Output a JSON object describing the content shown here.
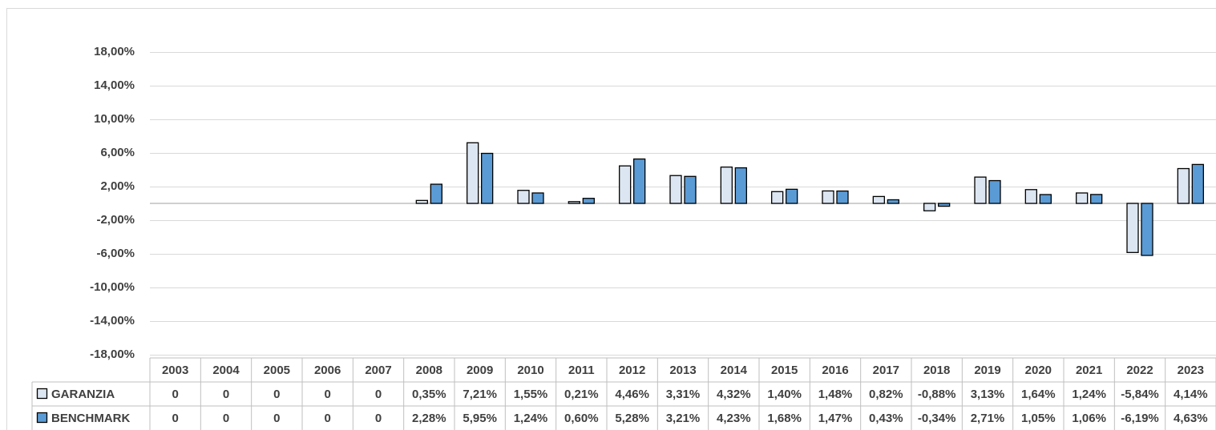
{
  "chart_data": {
    "type": "bar",
    "categories": [
      "2003",
      "2004",
      "2005",
      "2006",
      "2007",
      "2008",
      "2009",
      "2010",
      "2011",
      "2012",
      "2013",
      "2014",
      "2015",
      "2016",
      "2017",
      "2018",
      "2019",
      "2020",
      "2021",
      "2022",
      "2023"
    ],
    "series": [
      {
        "name": "GARANZIA",
        "color": "#dce6f2",
        "values": [
          0,
          0,
          0,
          0,
          0,
          0.35,
          7.21,
          1.55,
          0.21,
          4.46,
          3.31,
          4.32,
          1.4,
          1.48,
          0.82,
          -0.88,
          3.13,
          1.64,
          1.24,
          -5.84,
          4.14
        ],
        "value_labels": [
          "0",
          "0",
          "0",
          "0",
          "0",
          "0,35%",
          "7,21%",
          "1,55%",
          "0,21%",
          "4,46%",
          "3,31%",
          "4,32%",
          "1,40%",
          "1,48%",
          "0,82%",
          "-0,88%",
          "3,13%",
          "1,64%",
          "1,24%",
          "-5,84%",
          "4,14%"
        ]
      },
      {
        "name": "BENCHMARK",
        "color": "#5b9bd5",
        "values": [
          0,
          0,
          0,
          0,
          0,
          2.28,
          5.95,
          1.24,
          0.6,
          5.28,
          3.21,
          4.23,
          1.68,
          1.47,
          0.43,
          -0.34,
          2.71,
          1.05,
          1.06,
          -6.19,
          4.63
        ],
        "value_labels": [
          "0",
          "0",
          "0",
          "0",
          "0",
          "2,28%",
          "5,95%",
          "1,24%",
          "0,60%",
          "5,28%",
          "3,21%",
          "4,23%",
          "1,68%",
          "1,47%",
          "0,43%",
          "-0,34%",
          "2,71%",
          "1,05%",
          "1,06%",
          "-6,19%",
          "4,63%"
        ]
      }
    ],
    "ylim": [
      -18,
      18
    ],
    "yticks": [
      {
        "value": -18,
        "label": "-18,00%"
      },
      {
        "value": -14,
        "label": "-14,00%"
      },
      {
        "value": -10,
        "label": "-10,00%"
      },
      {
        "value": -6,
        "label": "-6,00%"
      },
      {
        "value": -2,
        "label": "-2,00%"
      },
      {
        "value": 2,
        "label": "2,00%"
      },
      {
        "value": 6,
        "label": "6,00%"
      },
      {
        "value": 10,
        "label": "10,00%"
      },
      {
        "value": 14,
        "label": "14,00%"
      },
      {
        "value": 18,
        "label": "18,00%"
      }
    ],
    "grid": true
  }
}
